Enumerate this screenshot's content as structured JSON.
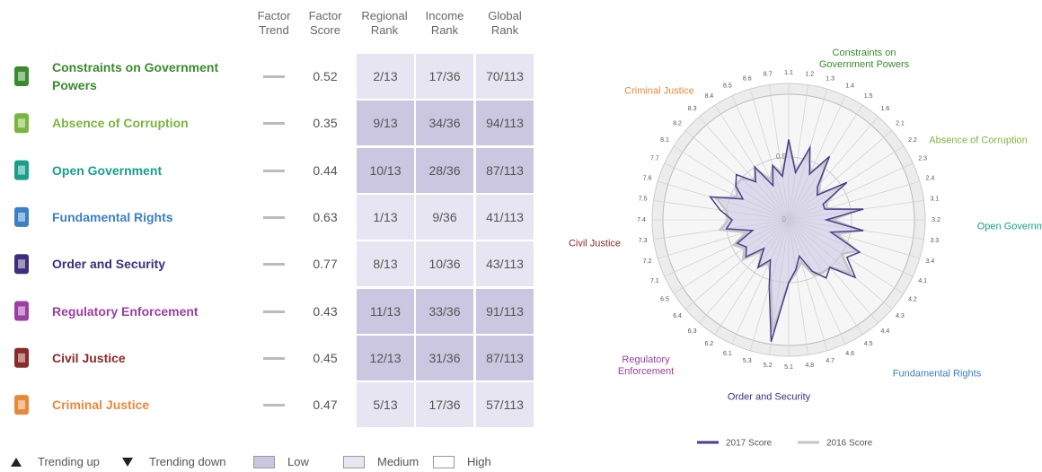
{
  "table": {
    "headers": [
      "Factor Trend",
      "Factor Score",
      "Regional Rank",
      "Income Rank",
      "Global Rank"
    ],
    "rows": [
      {
        "name": "Constraints on Government Powers",
        "color": "#3a8a2e",
        "score": 0.52,
        "regional": "2/13",
        "income": "17/36",
        "global": "70/113",
        "shade": [
          "Medium",
          "Medium",
          "Medium"
        ]
      },
      {
        "name": "Absence of Corruption",
        "color": "#7ab540",
        "score": 0.35,
        "regional": "9/13",
        "income": "34/36",
        "global": "94/113",
        "shade": [
          "Low",
          "Low",
          "Low"
        ]
      },
      {
        "name": "Open Government",
        "color": "#1a9e8c",
        "score": 0.44,
        "regional": "10/13",
        "income": "28/36",
        "global": "87/113",
        "shade": [
          "Low",
          "Low",
          "Low"
        ]
      },
      {
        "name": "Fundamental Rights",
        "color": "#3b7fc4",
        "score": 0.63,
        "regional": "1/13",
        "income": "9/36",
        "global": "41/113",
        "shade": [
          "Medium",
          "Medium",
          "Medium"
        ]
      },
      {
        "name": "Order and Security",
        "color": "#3d2e7c",
        "score": 0.77,
        "regional": "8/13",
        "income": "10/36",
        "global": "43/113",
        "shade": [
          "Medium",
          "Medium",
          "Medium"
        ]
      },
      {
        "name": "Regulatory Enforcement",
        "color": "#9b3fa3",
        "score": 0.43,
        "regional": "11/13",
        "income": "33/36",
        "global": "91/113",
        "shade": [
          "Low",
          "Low",
          "Low"
        ]
      },
      {
        "name": "Civil Justice",
        "color": "#8b2a2a",
        "score": 0.45,
        "regional": "12/13",
        "income": "31/36",
        "global": "87/113",
        "shade": [
          "Low",
          "Low",
          "Low"
        ]
      },
      {
        "name": "Criminal Justice",
        "color": "#e8893a",
        "score": 0.47,
        "regional": "5/13",
        "income": "17/36",
        "global": "57/113",
        "shade": [
          "Medium",
          "Medium",
          "Medium"
        ]
      }
    ]
  },
  "legend": {
    "trend": [
      "Trending up",
      "Trending down"
    ],
    "shades": [
      {
        "name": "Low",
        "color": "#cbc7e1"
      },
      {
        "name": "Medium",
        "color": "#e7e5f2"
      },
      {
        "name": "High",
        "color": "#ffffff"
      }
    ]
  },
  "chart_data": {
    "type": "radar",
    "spokes": [
      "1.1",
      "1.2",
      "1.3",
      "1.4",
      "1.5",
      "1.6",
      "2.1",
      "2.2",
      "2.3",
      "2.4",
      "3.1",
      "3.2",
      "3.3",
      "3.4",
      "4.1",
      "4.2",
      "4.3",
      "4.4",
      "4.5",
      "4.6",
      "4.7",
      "4.8",
      "5.1",
      "5.2",
      "5.3",
      "6.1",
      "6.2",
      "6.3",
      "6.4",
      "6.5",
      "7.1",
      "7.2",
      "7.3",
      "7.4",
      "7.5",
      "7.6",
      "7.7",
      "8.1",
      "8.2",
      "8.3",
      "8.4",
      "8.5",
      "8.6",
      "8.7"
    ],
    "rlim": [
      0,
      1
    ],
    "rticks": [
      0,
      0.5
    ],
    "series": [
      {
        "name": "2017 Score",
        "color": "#4b3d8f",
        "values": [
          0.64,
          0.38,
          0.6,
          0.4,
          0.6,
          0.35,
          0.3,
          0.55,
          0.3,
          0.3,
          0.6,
          0.3,
          0.6,
          0.35,
          0.62,
          0.55,
          0.7,
          0.5,
          0.55,
          0.45,
          0.3,
          0.4,
          0.5,
          0.98,
          0.55,
          0.35,
          0.45,
          0.3,
          0.45,
          0.4,
          0.45,
          0.3,
          0.5,
          0.45,
          0.55,
          0.65,
          0.4,
          0.5,
          0.55,
          0.4,
          0.5,
          0.3,
          0.45,
          0.35
        ]
      },
      {
        "name": "2016 Score",
        "color": "#c4c4c4",
        "values": [
          0.6,
          0.4,
          0.55,
          0.42,
          0.55,
          0.38,
          0.32,
          0.5,
          0.33,
          0.32,
          0.55,
          0.35,
          0.58,
          0.4,
          0.6,
          0.5,
          0.65,
          0.5,
          0.5,
          0.48,
          0.35,
          0.42,
          0.5,
          0.9,
          0.5,
          0.38,
          0.45,
          0.33,
          0.48,
          0.42,
          0.48,
          0.35,
          0.55,
          0.48,
          0.5,
          0.6,
          0.45,
          0.5,
          0.5,
          0.42,
          0.48,
          0.35,
          0.45,
          0.38
        ]
      }
    ]
  }
}
